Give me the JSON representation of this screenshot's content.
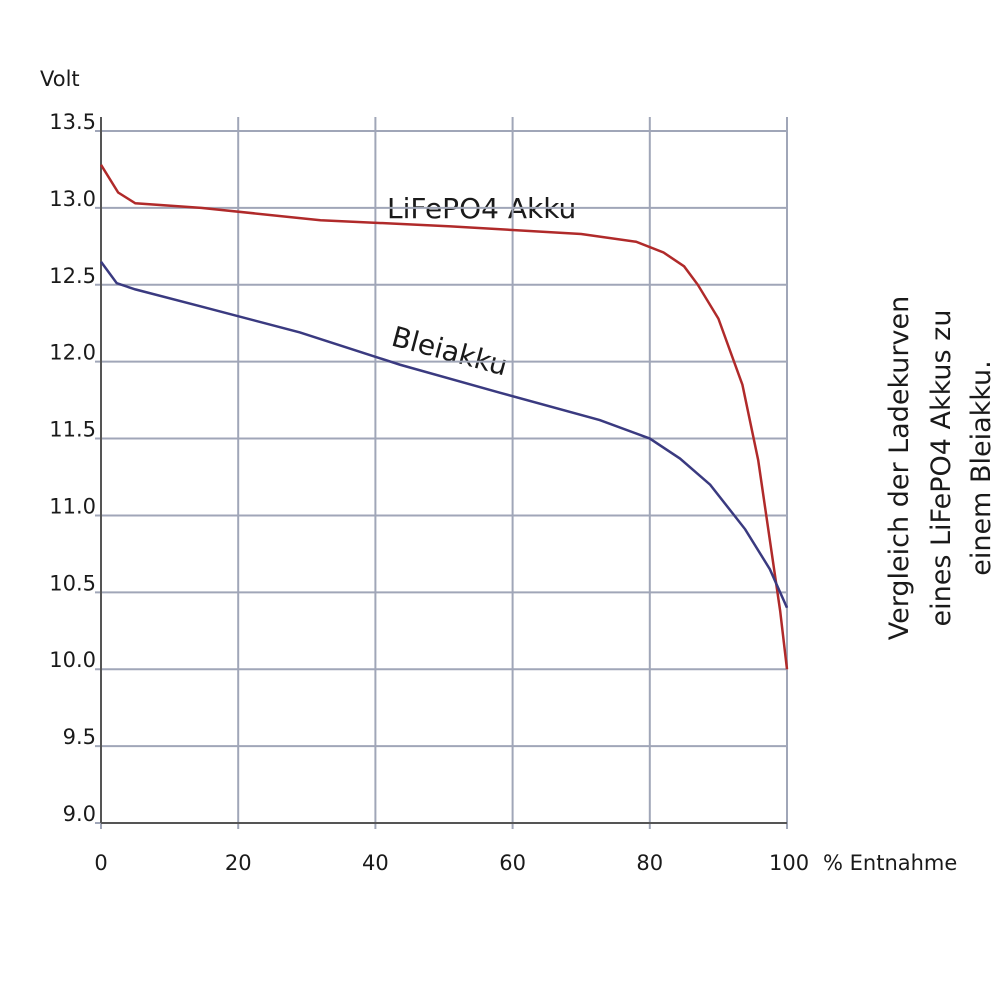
{
  "chart_data": {
    "type": "line",
    "y_label": "Volt",
    "x_label": "% Entnahme",
    "x": [],
    "series": [
      {
        "name": "LiFePO4 Akku",
        "color": "#b02a2a",
        "x": [
          0,
          2.5,
          5,
          14.6,
          32,
          51,
          70,
          78,
          82,
          85,
          87,
          90,
          93.5,
          95.8,
          97.5,
          99,
          100
        ],
        "values": [
          13.28,
          13.1,
          13.03,
          13.0,
          12.92,
          12.88,
          12.83,
          12.78,
          12.71,
          12.62,
          12.5,
          12.28,
          11.85,
          11.36,
          10.84,
          10.38,
          10.0
        ]
      },
      {
        "name": "Bleiakku",
        "color": "#3a3a80",
        "x": [
          0,
          2.3,
          5,
          14.5,
          29,
          43.6,
          58,
          72.7,
          80,
          84.4,
          88.8,
          93.9,
          97.5,
          100
        ],
        "values": [
          12.65,
          12.51,
          12.47,
          12.36,
          12.19,
          11.98,
          11.8,
          11.62,
          11.5,
          11.37,
          11.2,
          10.91,
          10.65,
          10.4
        ]
      }
    ],
    "xlim": [
      0,
      100
    ],
    "ylim": [
      9,
      13.5
    ],
    "xticks": [
      0,
      20,
      40,
      60,
      80,
      100
    ],
    "yticks": [
      {
        "value": 9,
        "label": "9.0"
      },
      9.5,
      {
        "value": 10,
        "label": "10.0"
      },
      10.5,
      {
        "value": 11,
        "label": "11.0"
      },
      11.5,
      {
        "value": 12,
        "label": "12.0"
      },
      12.5,
      {
        "value": 13,
        "label": "13.0"
      },
      13.5
    ],
    "grid": true,
    "side_note": [
      "Vergleich der Ladekurven",
      "eines LiFePO4 Akkus zu",
      "einem Bleiakku."
    ]
  }
}
